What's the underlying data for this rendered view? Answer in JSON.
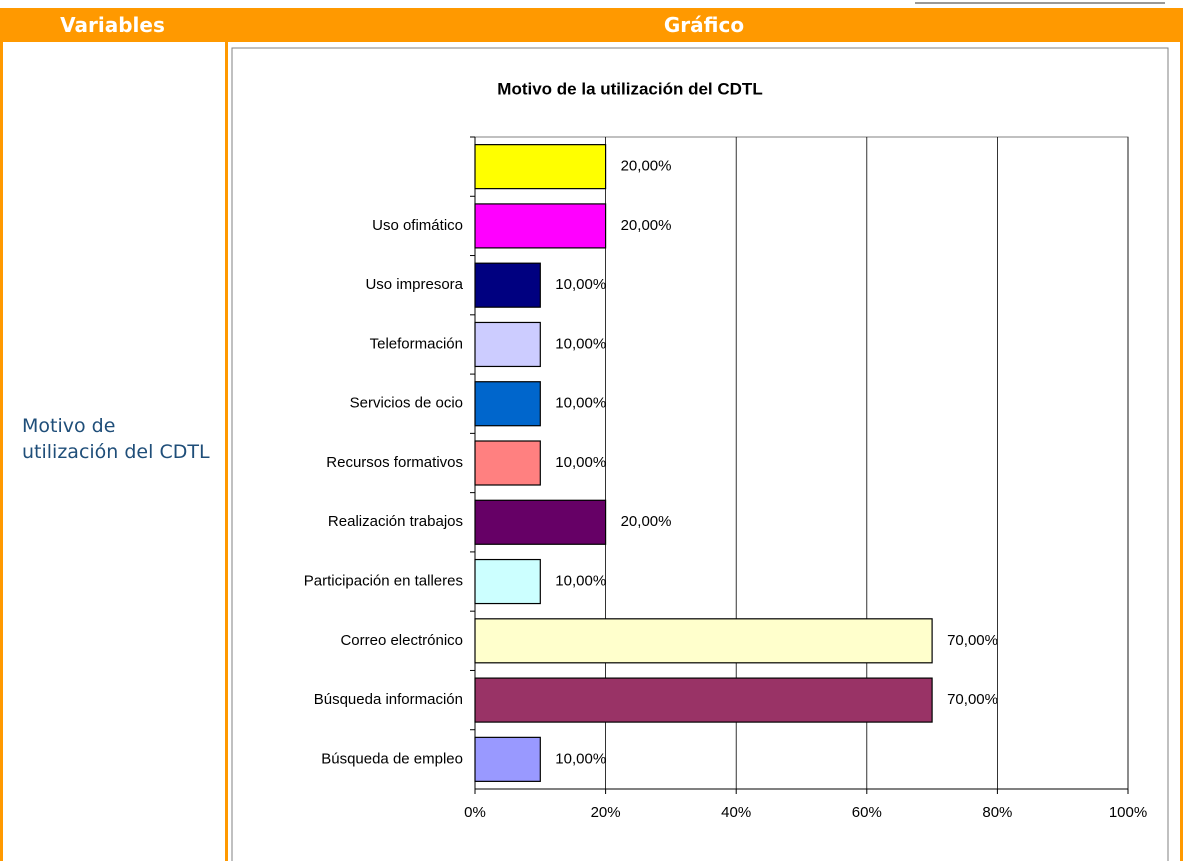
{
  "table": {
    "headers": [
      "Variables",
      "Gráfico"
    ],
    "variable": "Motivo de utilización del CDTL"
  },
  "chart_data": {
    "type": "hbar",
    "title": "Motivo de la utilización del CDTL",
    "categories": [
      null,
      "Uso ofimático",
      "Uso impresora",
      "Teleformación",
      "Servicios de ocio",
      "Recursos formativos",
      "Realización trabajos",
      "Participación en talleres",
      "Correo electrónico",
      "Búsqueda información",
      "Búsqueda de empleo"
    ],
    "values": [
      20,
      20,
      10,
      10,
      10,
      10,
      20,
      10,
      70,
      70,
      10
    ],
    "value_labels": [
      "20,00%",
      "20,00%",
      "10,00%",
      "10,00%",
      "10,00%",
      "10,00%",
      "20,00%",
      "10,00%",
      "70,00%",
      "70,00%",
      "10,00%"
    ],
    "colors": [
      "#ffff00",
      "#ff00ff",
      "#000080",
      "#ccccff",
      "#0066cc",
      "#ff8080",
      "#660066",
      "#ccffff",
      "#ffffcc",
      "#993366",
      "#9999ff"
    ],
    "xlim": [
      0,
      100
    ],
    "xticks": [
      {
        "value": 0,
        "label": "0%"
      },
      {
        "value": 20,
        "label": "20%"
      },
      {
        "value": 40,
        "label": "40%"
      },
      {
        "value": 60,
        "label": "60%"
      },
      {
        "value": 80,
        "label": "80%"
      },
      {
        "value": 100,
        "label": "100%"
      }
    ],
    "grid": true
  }
}
